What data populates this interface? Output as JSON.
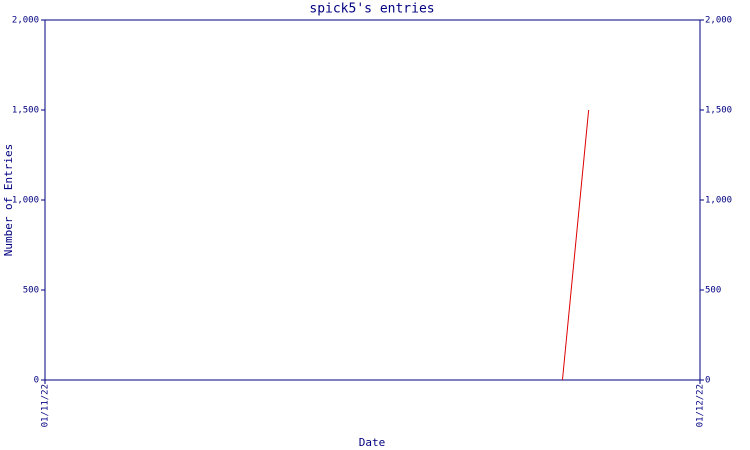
{
  "chart_data": {
    "type": "line",
    "title": "spick5's entries",
    "x_label": "Date",
    "y_label": "Number of Entries",
    "x": [
      0.79,
      0.83
    ],
    "xlim": [
      0,
      1
    ],
    "xticks": [
      {
        "value": 0,
        "label": "01/11/22"
      },
      {
        "value": 1,
        "label": "01/12/22"
      }
    ],
    "series": [
      {
        "name": "entries",
        "color": "#dd0000",
        "values": [
          0,
          1500
        ]
      }
    ],
    "ylim": [
      0,
      2000
    ],
    "yticks": [
      0,
      500,
      {
        "value": 1000,
        "label": "1,000"
      },
      {
        "value": 1500,
        "label": "1,500"
      },
      {
        "value": 2000,
        "label": "2,000"
      }
    ],
    "axis_color": "#000080"
  }
}
